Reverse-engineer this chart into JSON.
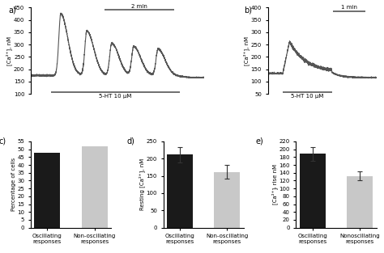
{
  "panel_a": {
    "ylabel": "[Ca²⁺], nM",
    "ylim": [
      100,
      450
    ],
    "yticks": [
      100,
      150,
      200,
      250,
      300,
      350,
      400,
      450
    ],
    "bar_label": "5-HT 10 μM",
    "scale_label": "2 min",
    "baseline": 175
  },
  "panel_b": {
    "ylabel": "[Ca²⁺], nM",
    "ylim": [
      50,
      400
    ],
    "yticks": [
      50,
      100,
      150,
      200,
      250,
      300,
      350,
      400
    ],
    "bar_label": "5-HT 10 μM",
    "scale_label": "1 min",
    "baseline": 138,
    "peak": 262
  },
  "panel_c": {
    "categories": [
      "Oscillating\nresponses",
      "Non-oscillating\nresponses"
    ],
    "values": [
      48,
      52
    ],
    "colors": [
      "#1a1a1a",
      "#c8c8c8"
    ],
    "ylabel": "Percentage of cells",
    "ylim": [
      0,
      55
    ],
    "yticks": [
      0,
      5,
      10,
      15,
      20,
      25,
      30,
      35,
      40,
      45,
      50,
      55
    ]
  },
  "panel_d": {
    "categories": [
      "Oscillating\nresponses",
      "Non-oscillating\nresponses"
    ],
    "values": [
      212,
      162
    ],
    "errors": [
      22,
      20
    ],
    "colors": [
      "#1a1a1a",
      "#c8c8c8"
    ],
    "ylabel": "Resting [Ca²⁺], nM",
    "ylim": [
      0,
      250
    ],
    "yticks": [
      0,
      50,
      100,
      150,
      200,
      250
    ]
  },
  "panel_e": {
    "categories": [
      "Oscillating\nresponses",
      "Nonoscillating\nresponses"
    ],
    "values": [
      188,
      132
    ],
    "errors": [
      18,
      12
    ],
    "colors": [
      "#1a1a1a",
      "#c8c8c8"
    ],
    "ylabel": "[Ca²⁺]ᵢ rise nM",
    "ylim": [
      0,
      220
    ],
    "yticks": [
      0,
      20,
      40,
      60,
      80,
      100,
      120,
      140,
      160,
      180,
      200,
      220
    ]
  },
  "line_color": "#555555",
  "bg_color": "#ffffff"
}
